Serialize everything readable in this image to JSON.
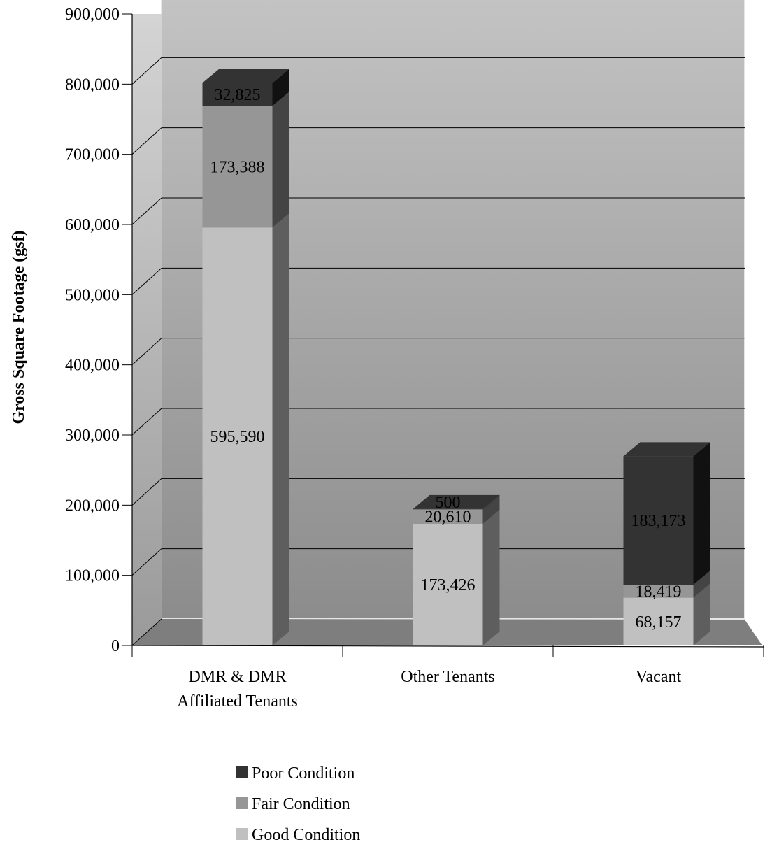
{
  "chart_data": {
    "type": "bar",
    "stacked": true,
    "style": "3d",
    "ylabel": "Gross Square Footage (gsf)",
    "ylim": [
      0,
      900000
    ],
    "y_ticks": [
      {
        "value": 0,
        "label": "0"
      },
      {
        "value": 100000,
        "label": "100,000"
      },
      {
        "value": 200000,
        "label": "200,000"
      },
      {
        "value": 300000,
        "label": "300,000"
      },
      {
        "value": 400000,
        "label": "400,000"
      },
      {
        "value": 500000,
        "label": "500,000"
      },
      {
        "value": 600000,
        "label": "600,000"
      },
      {
        "value": 700000,
        "label": "700,000"
      },
      {
        "value": 800000,
        "label": "800,000"
      },
      {
        "value": 900000,
        "label": "900,000"
      }
    ],
    "grid": true,
    "legend_position": "bottom",
    "categories": [
      {
        "line1": "DMR & DMR",
        "line2": "Affiliated Tenants"
      },
      {
        "line1": "Other Tenants",
        "line2": ""
      },
      {
        "line1": "Vacant",
        "line2": ""
      }
    ],
    "series": [
      {
        "name": "Good Condition",
        "color": "#c0c0c0",
        "side_color": "#5e5e5e",
        "values": [
          595590,
          173426,
          68157
        ],
        "labels": [
          "595,590",
          "173,426",
          "68,157"
        ],
        "label_color": "#000000"
      },
      {
        "name": "Fair Condition",
        "color": "#969696",
        "side_color": "#444444",
        "values": [
          173388,
          20610,
          18419
        ],
        "labels": [
          "173,388",
          "20,610",
          "18,419"
        ],
        "label_color": "#000000"
      },
      {
        "name": "Poor Condition",
        "color": "#333333",
        "side_color": "#111111",
        "values": [
          32825,
          500,
          183173
        ],
        "labels": [
          "32,825",
          "500",
          "183,173"
        ],
        "label_color": "#ffffff"
      }
    ],
    "legend_order": [
      "Poor Condition",
      "Fair Condition",
      "Good Condition"
    ]
  }
}
